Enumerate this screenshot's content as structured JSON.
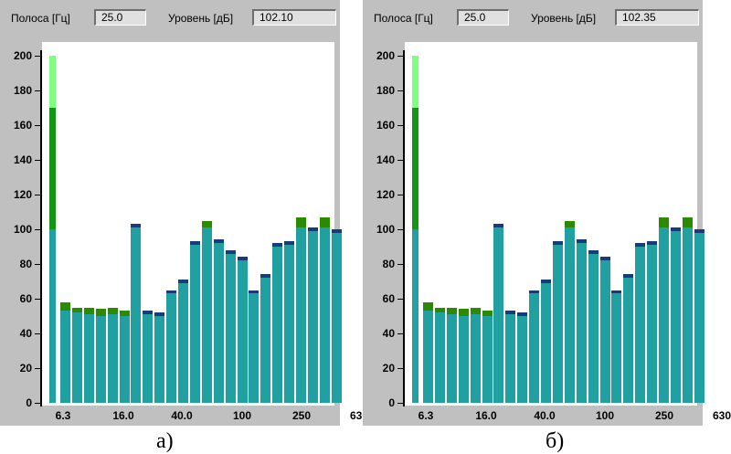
{
  "panels": [
    {
      "id": "a",
      "band_label": "Полоса [Гц]",
      "band_value": "25.0",
      "level_label": "Уровень [дБ]",
      "level_value": "102.10",
      "caption": "а)"
    },
    {
      "id": "b",
      "band_label": "Полоса [Гц]",
      "band_value": "25.0",
      "level_label": "Уровень [дБ]",
      "level_value": "102.35",
      "caption": "б)"
    }
  ],
  "chart_data": {
    "type": "bar",
    "ylim": [
      0,
      200
    ],
    "y_ticks": [
      "0",
      "20",
      "40",
      "60",
      "80",
      "100",
      "120",
      "140",
      "160",
      "180",
      "200"
    ],
    "x_tick_labels": [
      "6.3",
      "16.0",
      "40.0",
      "100",
      "250",
      "630"
    ],
    "level_indicator": {
      "value": 100,
      "bands": [
        100,
        170,
        200
      ]
    },
    "band_values": [
      53,
      52,
      51,
      50,
      51,
      50,
      101,
      51,
      50,
      63,
      69,
      91,
      101,
      92,
      86,
      82,
      63,
      72,
      90,
      91,
      101,
      99,
      101,
      98
    ],
    "band_peaks": [
      58,
      55,
      55,
      54,
      55,
      53,
      103,
      53,
      52,
      65,
      71,
      93,
      105,
      94,
      88,
      84,
      65,
      74,
      92,
      93,
      107,
      101,
      107,
      100
    ],
    "colors": {
      "bar": "#20a0a0",
      "peak_dark": "#1a3a7a",
      "peak_green": "#2b8a00",
      "indicator_light": "#80ff80",
      "indicator_dark": "#149614"
    }
  }
}
